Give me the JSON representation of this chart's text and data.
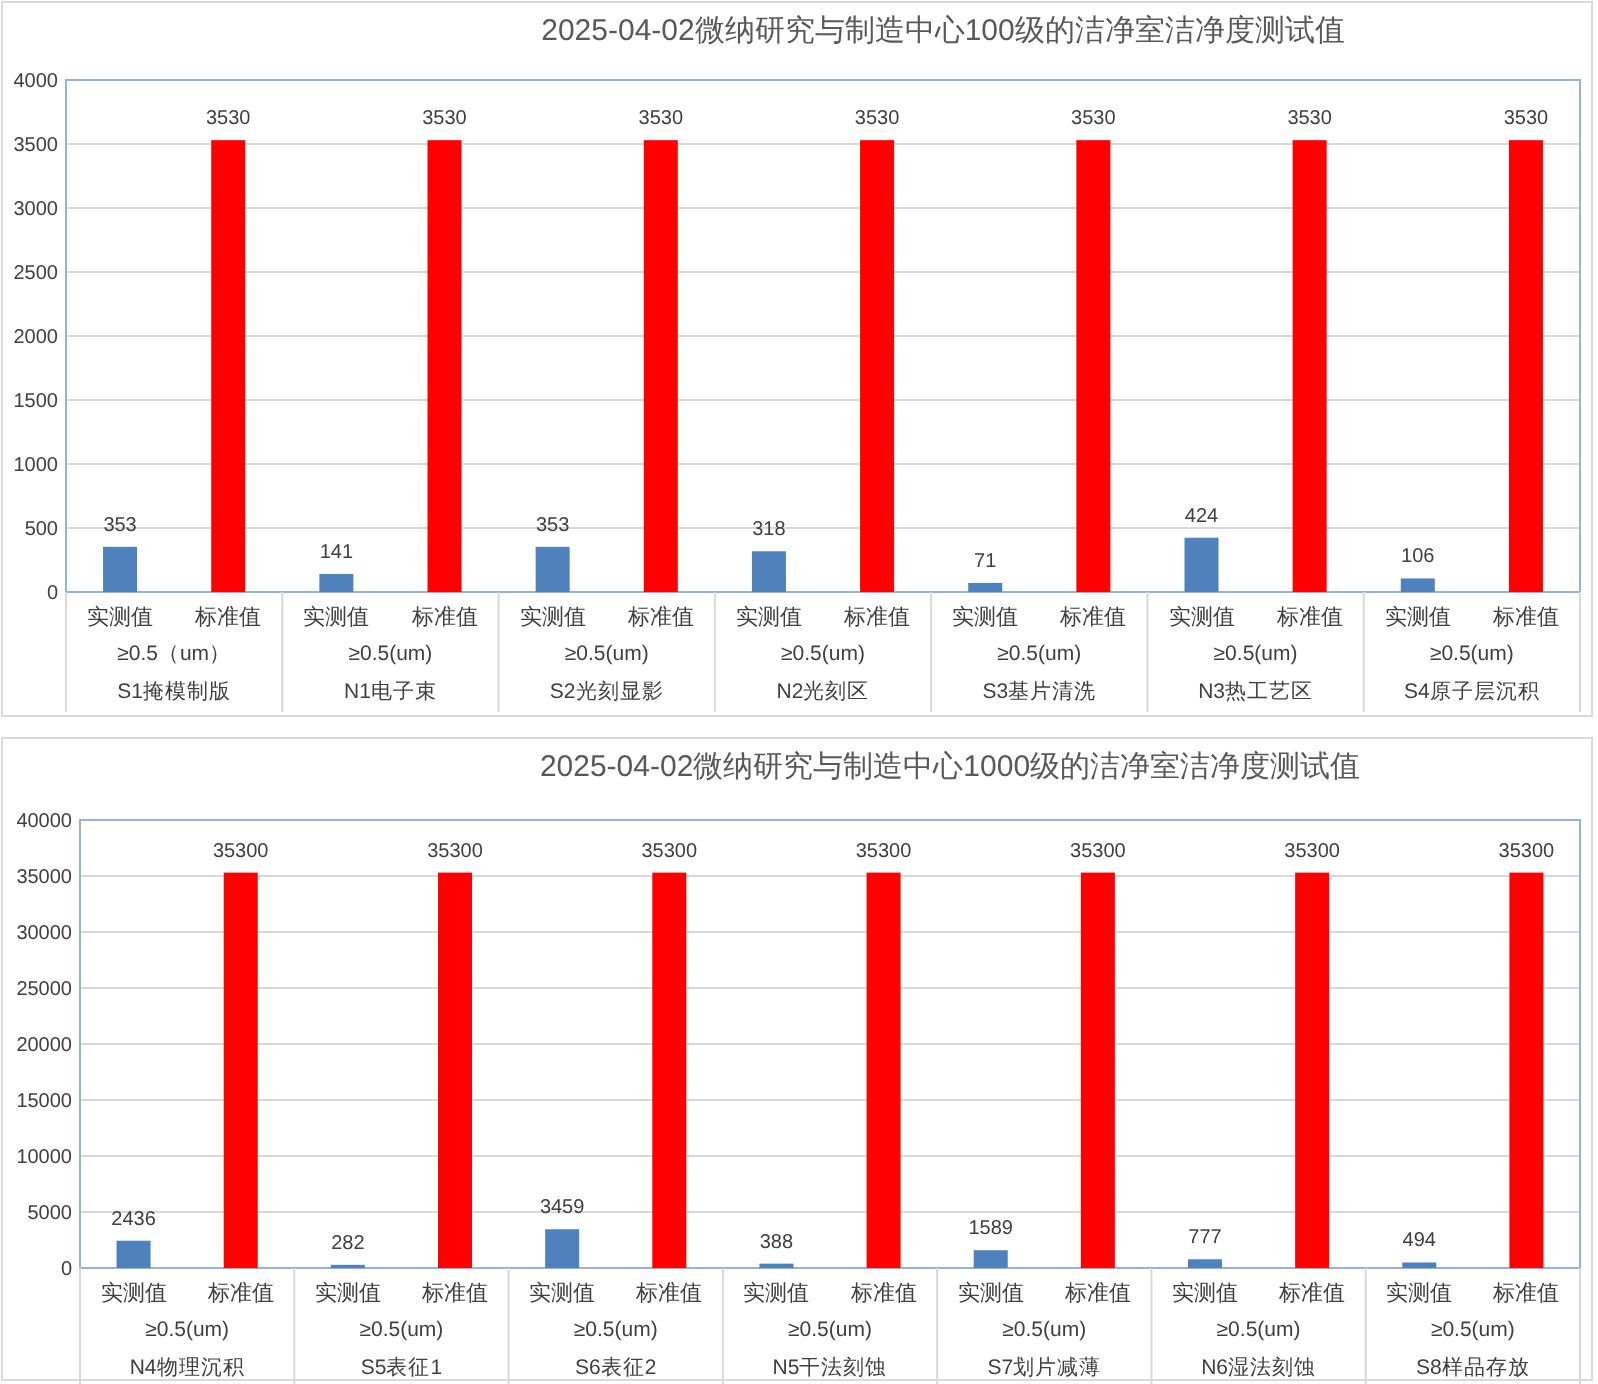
{
  "chart_data": [
    {
      "type": "bar",
      "title": "2025-04-02微纳研究与制造中心100级的洁净室洁净度测试值",
      "categories": [
        "≥0.5（um）\nS1掩模制版",
        "≥0.5(um)\nN1电子束",
        "≥0.5(um)\nS2光刻显影",
        "≥0.5(um)\nN2光刻区",
        "≥0.5(um)\nS3基片清洗",
        "≥0.5(um)\nN3热工艺区",
        "≥0.5(um)\nS4原子层沉积"
      ],
      "series": [
        {
          "name": "实测值",
          "color": "#4f81bd",
          "values": [
            353,
            141,
            353,
            318,
            71,
            424,
            106
          ]
        },
        {
          "name": "标准值",
          "color": "#ff0000",
          "values": [
            3530,
            3530,
            3530,
            3530,
            3530,
            3530,
            3530
          ]
        }
      ],
      "ylim": [
        0,
        4000
      ],
      "yticks": [
        0,
        500,
        1000,
        1500,
        2000,
        2500,
        3000,
        3500,
        4000
      ],
      "grid": "y",
      "data_labels": true,
      "legend": false
    },
    {
      "type": "bar",
      "title": "2025-04-02微纳研究与制造中心1000级的洁净室洁净度测试值",
      "categories": [
        "≥0.5(um)\nN4物理沉积",
        "≥0.5(um)\nS5表征1",
        "≥0.5(um)\nS6表征2",
        "≥0.5(um)\nN5干法刻蚀",
        "≥0.5(um)\nS7划片减薄",
        "≥0.5(um)\nN6湿法刻蚀",
        "≥0.5(um)\nS8样品存放"
      ],
      "series": [
        {
          "name": "实测值",
          "color": "#4f81bd",
          "values": [
            2436,
            282,
            3459,
            388,
            1589,
            777,
            494
          ]
        },
        {
          "name": "标准值",
          "color": "#ff0000",
          "values": [
            35300,
            35300,
            35300,
            35300,
            35300,
            35300,
            35300
          ]
        }
      ],
      "ylim": [
        0,
        40000
      ],
      "yticks": [
        0,
        5000,
        10000,
        15000,
        20000,
        25000,
        30000,
        35000,
        40000
      ],
      "grid": "y",
      "data_labels": true,
      "legend": false
    }
  ]
}
